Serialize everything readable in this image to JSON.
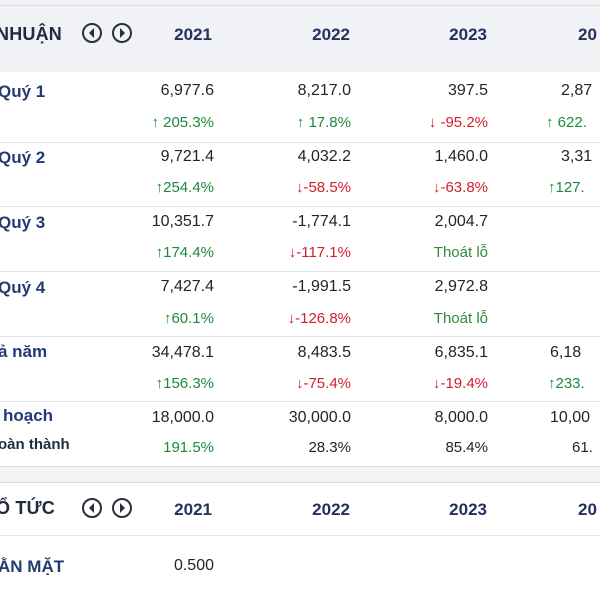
{
  "profit": {
    "title": "NHUẬN",
    "years": [
      "2021",
      "2022",
      "2023",
      "20"
    ],
    "rows": [
      {
        "label": "Quý 1",
        "values": [
          "6,977.6",
          "8,217.0",
          "397.5",
          "2,87"
        ],
        "changes": [
          {
            "arrow": "↑",
            "text": "205.3%",
            "dir": "up"
          },
          {
            "arrow": "↑",
            "text": "17.8%",
            "dir": "up"
          },
          {
            "arrow": "↓",
            "text": "-95.2%",
            "dir": "down"
          },
          {
            "arrow": "↑",
            "text": "622.",
            "dir": "up"
          }
        ]
      },
      {
        "label": "Quý 2",
        "values": [
          "9,721.4",
          "4,032.2",
          "1,460.0",
          "3,31"
        ],
        "changes": [
          {
            "arrow": "↑",
            "text": "254.4%",
            "dir": "up"
          },
          {
            "arrow": "↓",
            "text": "-58.5%",
            "dir": "down"
          },
          {
            "arrow": "↓",
            "text": "-63.8%",
            "dir": "down"
          },
          {
            "arrow": "↑",
            "text": "127.",
            "dir": "up"
          }
        ]
      },
      {
        "label": "Quý 3",
        "values": [
          "10,351.7",
          "-1,774.1",
          "2,004.7",
          ""
        ],
        "changes": [
          {
            "arrow": "↑",
            "text": "174.4%",
            "dir": "up"
          },
          {
            "arrow": "↓",
            "text": "-117.1%",
            "dir": "down"
          },
          {
            "arrow": "",
            "text": "Thoát lỗ",
            "dir": "plain"
          },
          {
            "arrow": "",
            "text": "",
            "dir": "plain"
          }
        ]
      },
      {
        "label": "Quý 4",
        "values": [
          "7,427.4",
          "-1,991.5",
          "2,972.8",
          ""
        ],
        "changes": [
          {
            "arrow": "↑",
            "text": "60.1%",
            "dir": "up"
          },
          {
            "arrow": "↓",
            "text": "-126.8%",
            "dir": "down"
          },
          {
            "arrow": "",
            "text": "Thoát lỗ",
            "dir": "plain"
          },
          {
            "arrow": "",
            "text": "",
            "dir": "plain"
          }
        ]
      },
      {
        "label": "ả năm",
        "values": [
          "34,478.1",
          "8,483.5",
          "6,835.1",
          "6,18"
        ],
        "changes": [
          {
            "arrow": "↑",
            "text": "156.3%",
            "dir": "up"
          },
          {
            "arrow": "↓",
            "text": "-75.4%",
            "dir": "down"
          },
          {
            "arrow": "↓",
            "text": "-19.4%",
            "dir": "down"
          },
          {
            "arrow": "↑",
            "text": "233.",
            "dir": "up"
          }
        ]
      }
    ],
    "plan": {
      "label": "hoạch",
      "sub_label": "oàn thành",
      "values": [
        "18,000.0",
        "30,000.0",
        "8,000.0",
        "10,00"
      ],
      "completion": [
        "191.5%",
        "28.3%",
        "85.4%",
        "61."
      ]
    }
  },
  "dividend": {
    "title": "Ổ TỨC",
    "years": [
      "2021",
      "2022",
      "2023",
      "20"
    ],
    "rows": [
      {
        "label": "ẰN MẶT",
        "values": [
          "0.500",
          "",
          "",
          ""
        ]
      }
    ]
  },
  "colors": {
    "up": "#1c8a3c",
    "down": "#d0202e",
    "header_bg": "#f1f2f6",
    "label": "#243a73"
  }
}
